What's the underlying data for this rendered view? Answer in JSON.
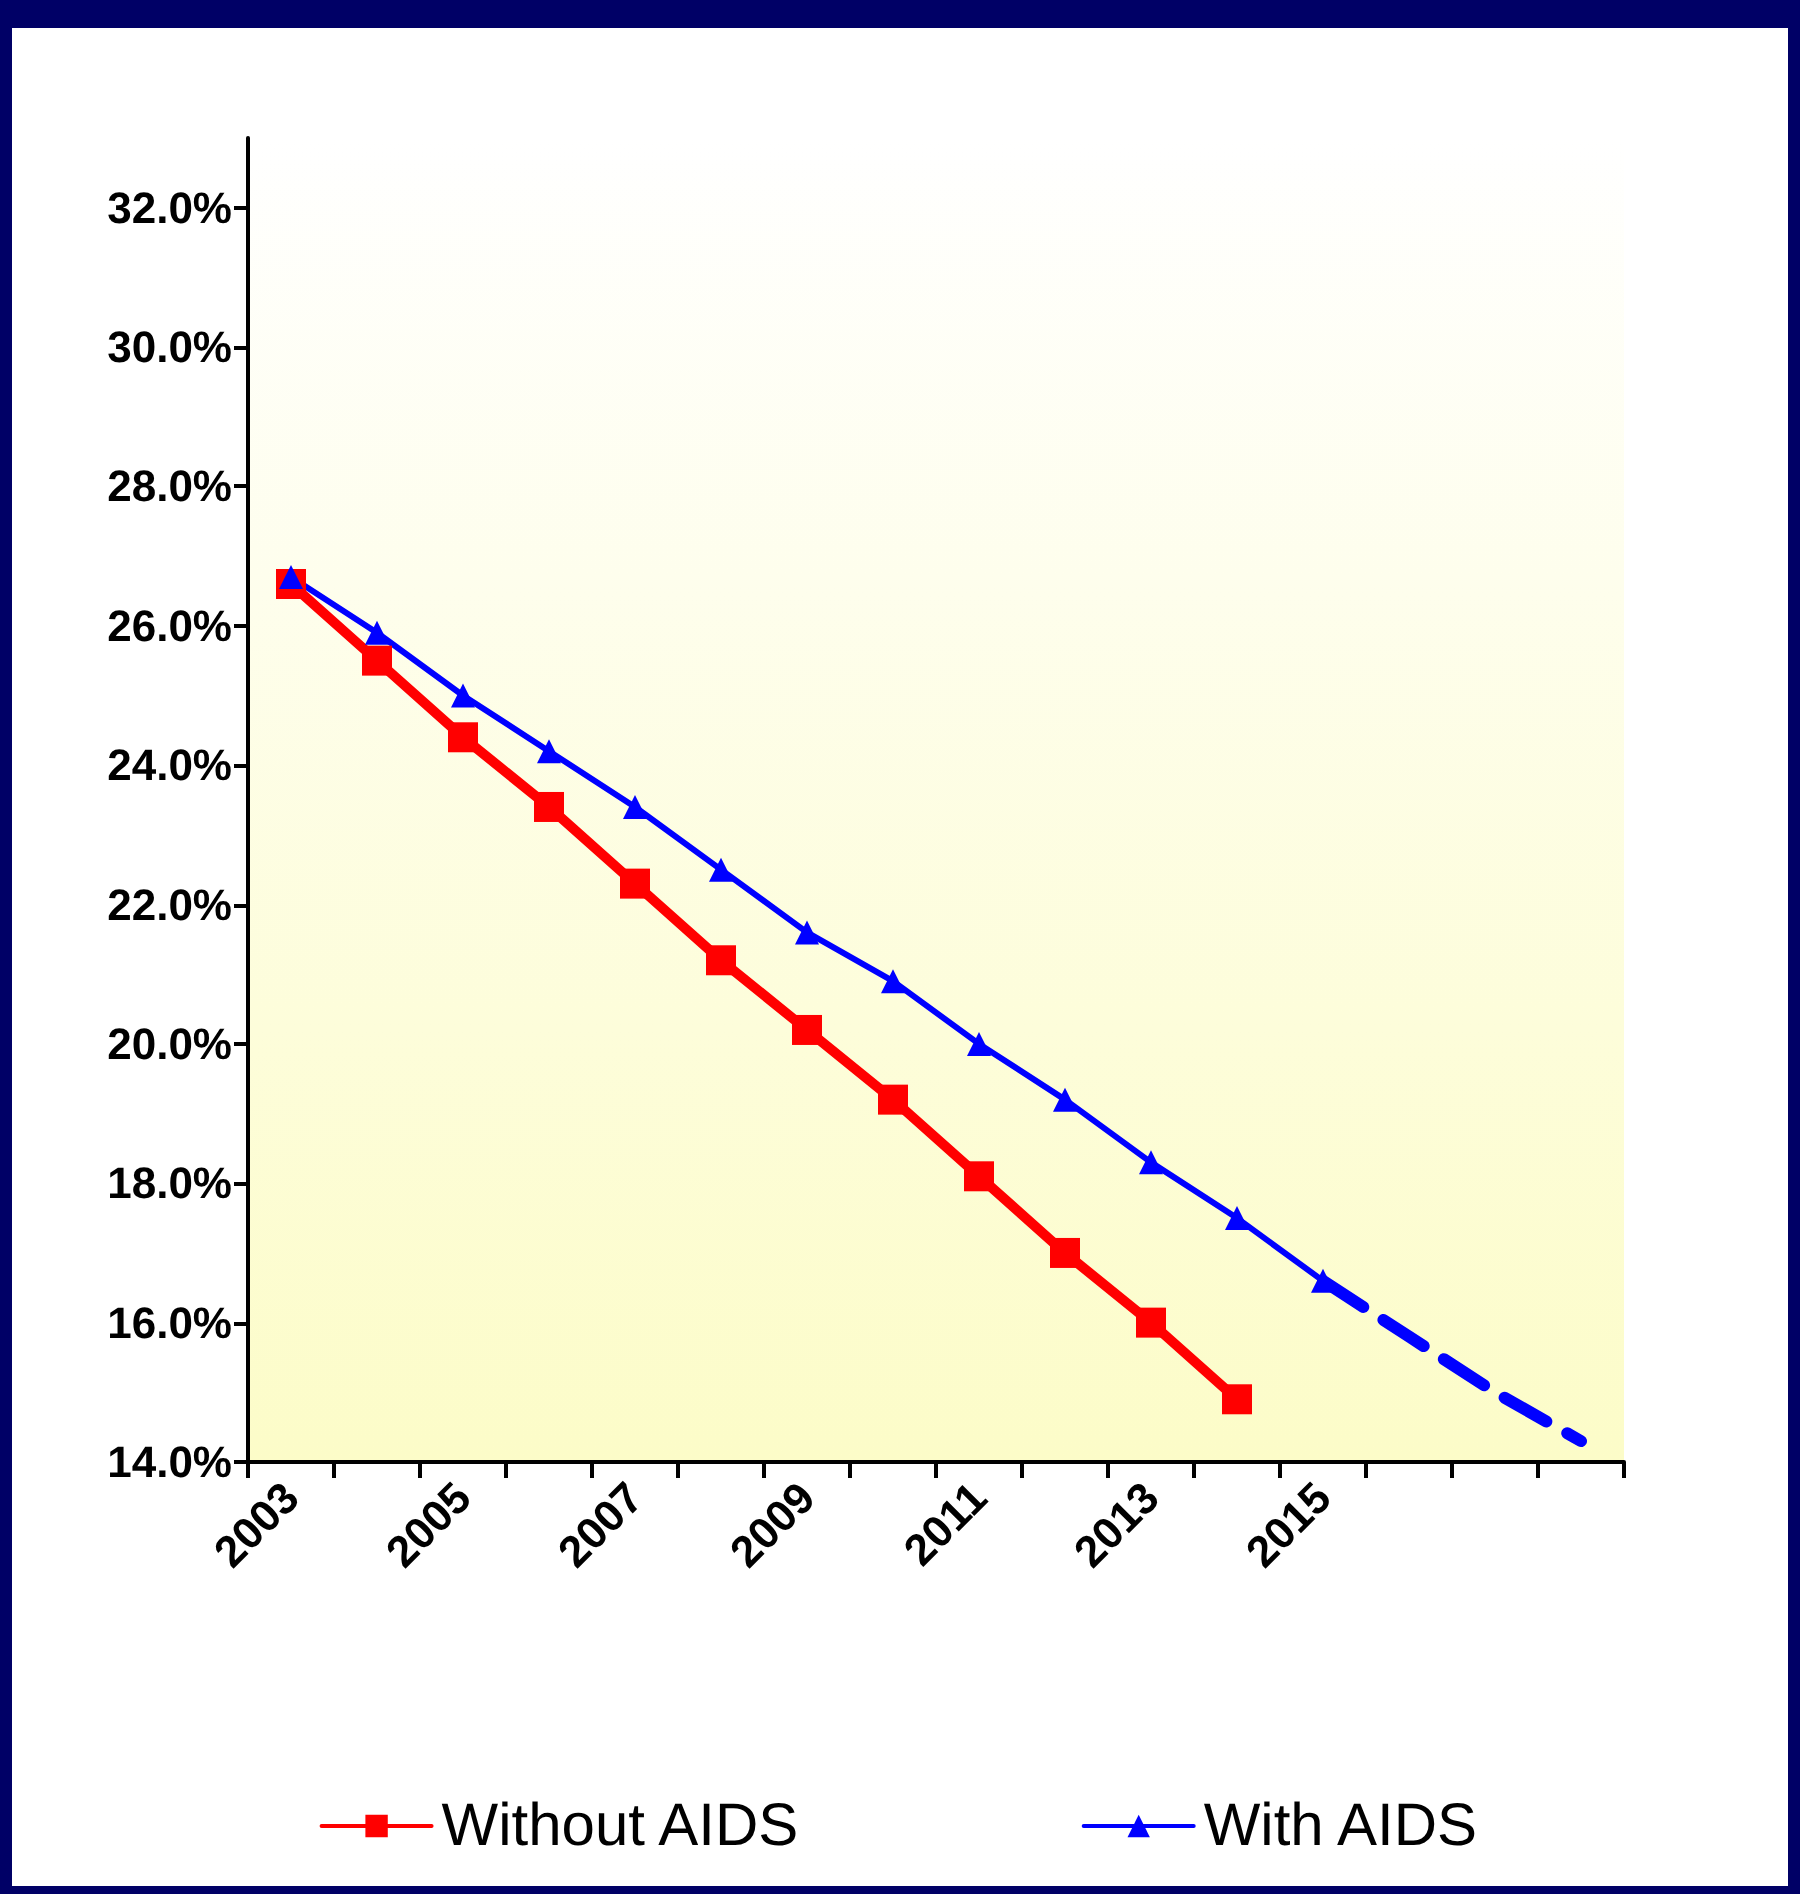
{
  "chart_data": {
    "type": "line",
    "categories": [
      "2003",
      null,
      "2005",
      null,
      "2007",
      null,
      "2009",
      null,
      "2011",
      null,
      "2013",
      null,
      "2015",
      null,
      null,
      null
    ],
    "series": [
      {
        "color": "#0000ff",
        "line_style": "dashed",
        "marker": "none",
        "values": [
          null,
          null,
          null,
          null,
          null,
          null,
          null,
          null,
          null,
          null,
          null,
          null,
          16.6,
          15.8,
          15.0,
          14.3
        ]
      },
      {
        "name": "Without AIDS",
        "color": "#ff0000",
        "line_style": "solid",
        "marker": "square",
        "values": [
          26.6,
          25.5,
          24.4,
          23.4,
          22.3,
          21.2,
          20.2,
          19.2,
          18.1,
          17.0,
          16.0,
          14.9,
          null,
          null,
          null,
          null
        ]
      },
      {
        "name": "With AIDS",
        "color": "#0000ff",
        "line_style": "solid",
        "marker": "triangle",
        "values": [
          26.7,
          25.9,
          25.0,
          24.2,
          23.4,
          22.5,
          21.6,
          20.9,
          20.0,
          19.2,
          18.3,
          17.5,
          16.6,
          null,
          null,
          null
        ]
      }
    ],
    "ylim": [
      14,
      33
    ],
    "yticks": [
      {
        "value": 14,
        "label": "14.0%"
      },
      {
        "value": 16,
        "label": "16.0%"
      },
      {
        "value": 18,
        "label": "18.0%"
      },
      {
        "value": 20,
        "label": "20.0%"
      },
      {
        "value": 22,
        "label": "22.0%"
      },
      {
        "value": 24,
        "label": "24.0%"
      },
      {
        "value": 26,
        "label": "26.0%"
      },
      {
        "value": 28,
        "label": "28.0%"
      },
      {
        "value": 30,
        "label": "30.0%"
      },
      {
        "value": 32,
        "label": "32.0%"
      }
    ],
    "grid": false,
    "legend": "bottom"
  }
}
